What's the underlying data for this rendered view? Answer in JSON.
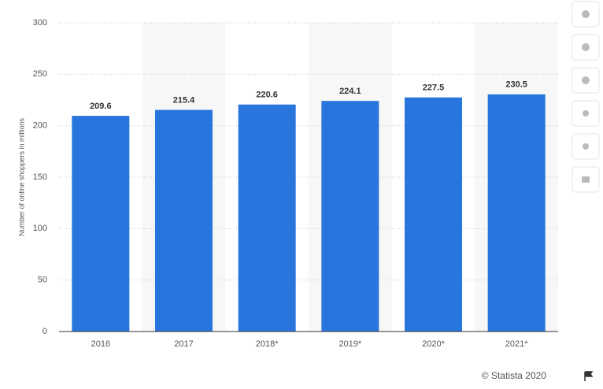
{
  "chart_data": {
    "type": "bar",
    "y_label": "Number of online shoppers in millions",
    "categories": [
      "2016",
      "2017",
      "2018*",
      "2019*",
      "2020*",
      "2021*"
    ],
    "values": [
      209.6,
      215.4,
      220.6,
      224.1,
      227.5,
      230.5
    ],
    "color": "#2876dd",
    "ylim": [
      0,
      300
    ],
    "yticks": [
      0,
      50,
      100,
      150,
      200,
      250,
      300
    ],
    "grid": true,
    "credit": "© Statista 2020"
  }
}
